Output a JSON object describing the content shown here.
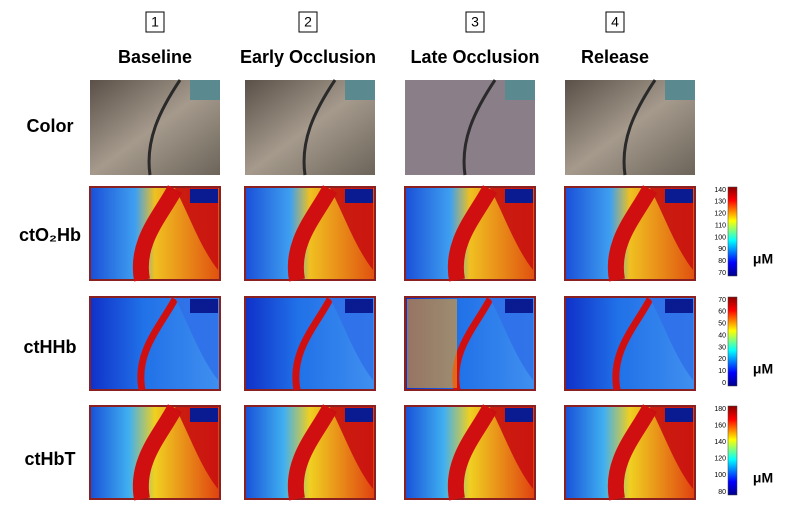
{
  "columns": [
    {
      "number": "1",
      "label": "Baseline"
    },
    {
      "number": "2",
      "label": "Early Occlusion"
    },
    {
      "number": "3",
      "label": "Late Occlusion"
    },
    {
      "number": "4",
      "label": "Release"
    }
  ],
  "rows": [
    {
      "label": "Color"
    },
    {
      "label": "ctO₂Hb",
      "colorbar": {
        "ticks": [
          "140",
          "130",
          "120",
          "110",
          "100",
          "90",
          "80",
          "70"
        ],
        "unit": "μM"
      }
    },
    {
      "label": "ctHHb",
      "colorbar": {
        "ticks": [
          "70",
          "60",
          "50",
          "40",
          "30",
          "20",
          "10",
          "0"
        ],
        "unit": "μM"
      }
    },
    {
      "label": "ctHbT",
      "colorbar": {
        "ticks": [
          "180",
          "160",
          "140",
          "120",
          "100",
          "80"
        ],
        "unit": "μM"
      }
    }
  ]
}
